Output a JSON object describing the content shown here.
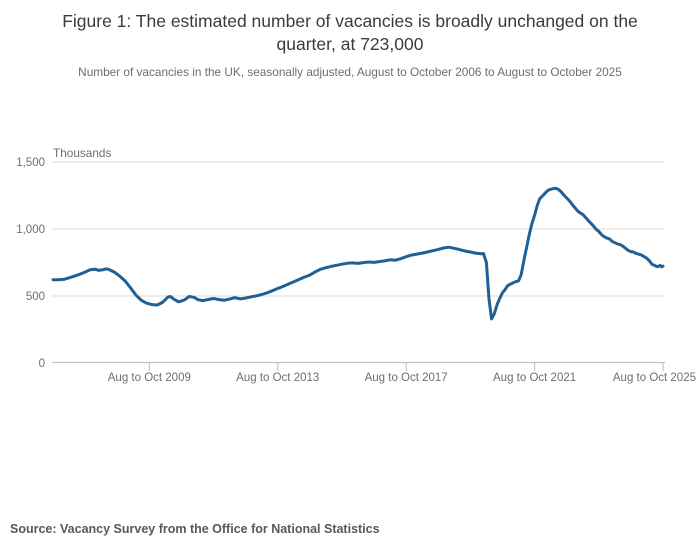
{
  "figure": {
    "title": "Figure 1: The estimated number of vacancies is broadly unchanged on the quarter, at 723,000",
    "subtitle": "Number of vacancies in the UK, seasonally adjusted, August to October 2006 to August to October 2025",
    "source": "Source: Vacancy Survey from the Office for National Statistics"
  },
  "chart_data": {
    "type": "line",
    "title": "Figure 1: The estimated number of vacancies is broadly unchanged on the quarter, at 723,000",
    "subtitle": "Number of vacancies in the UK, seasonally adjusted, August to October 2006 to August to October 2025",
    "series_name": "Number of vacancies in the UK (thousands), seasonally adjusted",
    "unit_label": "Thousands",
    "xlabel": "",
    "ylabel": "Thousands",
    "xlim": [
      2006.71,
      2025.71
    ],
    "ylim": [
      0,
      1500
    ],
    "grid": "horizontal",
    "legend": "none",
    "latest_value_thousands": 723,
    "y_ticks": [
      {
        "v": 0,
        "label": "0"
      },
      {
        "v": 500,
        "label": "500"
      },
      {
        "v": 1000,
        "label": "1,000"
      },
      {
        "v": 1500,
        "label": "1,500"
      }
    ],
    "x_ticks": [
      {
        "x": 2009.71,
        "label": "Aug to Oct 2009"
      },
      {
        "x": 2013.71,
        "label": "Aug to Oct 2013"
      },
      {
        "x": 2017.71,
        "label": "Aug to Oct 2017"
      },
      {
        "x": 2021.71,
        "label": "Aug to Oct 2021"
      },
      {
        "x": 2025.71,
        "label": "Aug to Oct 2025"
      }
    ],
    "colors": {
      "line": "#206095",
      "grid": "#d9d9d9",
      "axis": "#b8c7d2",
      "title_text": "#3b3b3b",
      "muted_text": "#6e6e6e",
      "source_text": "#595959"
    },
    "points": [
      [
        2006.71,
        622
      ],
      [
        2006.87,
        621
      ],
      [
        2007.04,
        624
      ],
      [
        2007.21,
        636
      ],
      [
        2007.37,
        648
      ],
      [
        2007.54,
        662
      ],
      [
        2007.71,
        678
      ],
      [
        2007.87,
        696
      ],
      [
        2008.04,
        700
      ],
      [
        2008.12,
        691
      ],
      [
        2008.29,
        697
      ],
      [
        2008.37,
        703
      ],
      [
        2008.46,
        697
      ],
      [
        2008.62,
        678
      ],
      [
        2008.79,
        648
      ],
      [
        2008.96,
        612
      ],
      [
        2009.12,
        562
      ],
      [
        2009.29,
        508
      ],
      [
        2009.46,
        468
      ],
      [
        2009.62,
        447
      ],
      [
        2009.79,
        436
      ],
      [
        2009.96,
        433
      ],
      [
        2010.12,
        452
      ],
      [
        2010.29,
        492
      ],
      [
        2010.37,
        496
      ],
      [
        2010.46,
        478
      ],
      [
        2010.62,
        457
      ],
      [
        2010.79,
        469
      ],
      [
        2010.96,
        497
      ],
      [
        2011.12,
        488
      ],
      [
        2011.21,
        474
      ],
      [
        2011.37,
        465
      ],
      [
        2011.54,
        474
      ],
      [
        2011.71,
        481
      ],
      [
        2011.87,
        474
      ],
      [
        2012.04,
        469
      ],
      [
        2012.21,
        477
      ],
      [
        2012.37,
        487
      ],
      [
        2012.54,
        478
      ],
      [
        2012.71,
        484
      ],
      [
        2012.87,
        493
      ],
      [
        2013.04,
        501
      ],
      [
        2013.21,
        511
      ],
      [
        2013.37,
        523
      ],
      [
        2013.54,
        539
      ],
      [
        2013.71,
        556
      ],
      [
        2013.87,
        571
      ],
      [
        2014.04,
        589
      ],
      [
        2014.21,
        606
      ],
      [
        2014.37,
        623
      ],
      [
        2014.54,
        641
      ],
      [
        2014.71,
        656
      ],
      [
        2014.87,
        679
      ],
      [
        2015.04,
        699
      ],
      [
        2015.21,
        711
      ],
      [
        2015.37,
        721
      ],
      [
        2015.54,
        729
      ],
      [
        2015.71,
        737
      ],
      [
        2015.87,
        744
      ],
      [
        2016.04,
        747
      ],
      [
        2016.21,
        743
      ],
      [
        2016.37,
        749
      ],
      [
        2016.54,
        754
      ],
      [
        2016.71,
        751
      ],
      [
        2016.87,
        757
      ],
      [
        2017.04,
        762
      ],
      [
        2017.21,
        770
      ],
      [
        2017.37,
        767
      ],
      [
        2017.54,
        778
      ],
      [
        2017.71,
        793
      ],
      [
        2017.87,
        805
      ],
      [
        2018.04,
        813
      ],
      [
        2018.21,
        820
      ],
      [
        2018.37,
        828
      ],
      [
        2018.54,
        838
      ],
      [
        2018.71,
        848
      ],
      [
        2018.87,
        858
      ],
      [
        2019.04,
        864
      ],
      [
        2019.21,
        856
      ],
      [
        2019.37,
        846
      ],
      [
        2019.54,
        836
      ],
      [
        2019.71,
        828
      ],
      [
        2019.87,
        820
      ],
      [
        2020.04,
        815
      ],
      [
        2020.12,
        817
      ],
      [
        2020.21,
        750
      ],
      [
        2020.29,
        476
      ],
      [
        2020.37,
        328
      ],
      [
        2020.46,
        370
      ],
      [
        2020.54,
        434
      ],
      [
        2020.62,
        480
      ],
      [
        2020.71,
        525
      ],
      [
        2020.79,
        547
      ],
      [
        2020.87,
        577
      ],
      [
        2020.96,
        589
      ],
      [
        2021.04,
        598
      ],
      [
        2021.12,
        607
      ],
      [
        2021.21,
        613
      ],
      [
        2021.29,
        657
      ],
      [
        2021.37,
        758
      ],
      [
        2021.46,
        862
      ],
      [
        2021.54,
        953
      ],
      [
        2021.62,
        1034
      ],
      [
        2021.71,
        1103
      ],
      [
        2021.79,
        1172
      ],
      [
        2021.87,
        1225
      ],
      [
        2021.96,
        1248
      ],
      [
        2022.04,
        1268
      ],
      [
        2022.12,
        1287
      ],
      [
        2022.21,
        1296
      ],
      [
        2022.29,
        1301
      ],
      [
        2022.37,
        1304
      ],
      [
        2022.46,
        1294
      ],
      [
        2022.54,
        1277
      ],
      [
        2022.62,
        1254
      ],
      [
        2022.71,
        1231
      ],
      [
        2022.79,
        1211
      ],
      [
        2022.87,
        1187
      ],
      [
        2022.96,
        1161
      ],
      [
        2023.04,
        1137
      ],
      [
        2023.12,
        1122
      ],
      [
        2023.21,
        1109
      ],
      [
        2023.29,
        1089
      ],
      [
        2023.37,
        1066
      ],
      [
        2023.46,
        1043
      ],
      [
        2023.54,
        1024
      ],
      [
        2023.62,
        999
      ],
      [
        2023.71,
        982
      ],
      [
        2023.79,
        959
      ],
      [
        2023.87,
        944
      ],
      [
        2023.96,
        932
      ],
      [
        2024.04,
        926
      ],
      [
        2024.12,
        908
      ],
      [
        2024.21,
        898
      ],
      [
        2024.29,
        889
      ],
      [
        2024.37,
        884
      ],
      [
        2024.46,
        872
      ],
      [
        2024.54,
        857
      ],
      [
        2024.62,
        841
      ],
      [
        2024.71,
        831
      ],
      [
        2024.79,
        828
      ],
      [
        2024.87,
        818
      ],
      [
        2024.96,
        812
      ],
      [
        2025.04,
        805
      ],
      [
        2025.12,
        794
      ],
      [
        2025.21,
        781
      ],
      [
        2025.29,
        761
      ],
      [
        2025.37,
        736
      ],
      [
        2025.46,
        727
      ],
      [
        2025.54,
        718
      ],
      [
        2025.62,
        728
      ],
      [
        2025.67,
        717
      ],
      [
        2025.71,
        723
      ]
    ]
  }
}
